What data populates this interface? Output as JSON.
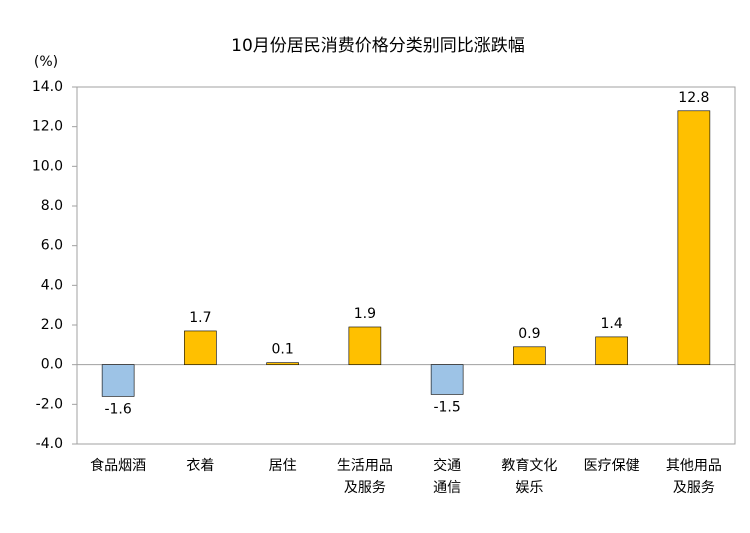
{
  "chart_data": {
    "type": "bar",
    "title": "10月份居民消费价格分类别同比涨跌幅",
    "y_label": "(%)",
    "categories": [
      "食品烟酒",
      "衣着",
      "居住",
      "生活用品\n及服务",
      "交通\n通信",
      "教育文化\n娱乐",
      "医疗保健",
      "其他用品\n及服务"
    ],
    "values": [
      -1.6,
      1.7,
      0.1,
      1.9,
      -1.5,
      0.9,
      1.4,
      12.8
    ],
    "positive_color": "#ffc000",
    "negative_color": "#9dc3e6",
    "ylim": [
      -4,
      14
    ],
    "yticks": [
      {
        "value": -4,
        "label": "-4.0"
      },
      {
        "value": -2,
        "label": "-2.0"
      },
      {
        "value": 0,
        "label": "0.0"
      },
      {
        "value": 2,
        "label": "2.0"
      },
      {
        "value": 4,
        "label": "4.0"
      },
      {
        "value": 6,
        "label": "6.0"
      },
      {
        "value": 8,
        "label": "8.0"
      },
      {
        "value": 10,
        "label": "10.0"
      },
      {
        "value": 12,
        "label": "12.0"
      },
      {
        "value": 14,
        "label": "14.0"
      }
    ]
  }
}
